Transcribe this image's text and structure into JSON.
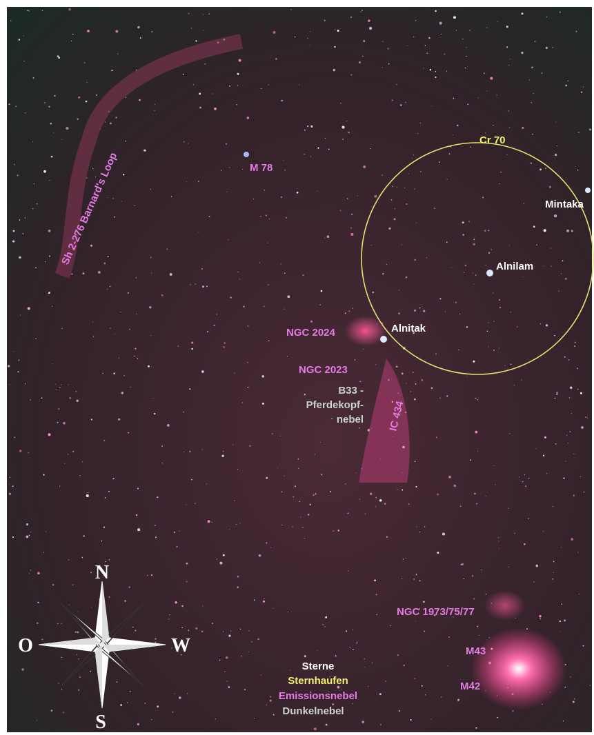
{
  "labels": {
    "barnards_loop": "Sh 2-276  Barnard's Loop",
    "m78": "M 78",
    "cr70": "Cr 70",
    "mintaka": "Mintaka",
    "alnilam": "Alnilam",
    "alnitak": "Alnitak",
    "ngc2024": "NGC 2024",
    "ngc2023": "NGC 2023",
    "b33": [
      "B33 -",
      "Pferdekopf-",
      "nebel"
    ],
    "ic434": "IC 434",
    "ngc1973": "NGC 1973/75/77",
    "m43": "M43",
    "m42": "M42"
  },
  "legend": [
    "Sterne",
    "Sternhaufen",
    "Emissionsnebel",
    "Dunkelnebel"
  ],
  "compass": {
    "north": "N",
    "west": "W",
    "south": "S",
    "east": "O"
  }
}
